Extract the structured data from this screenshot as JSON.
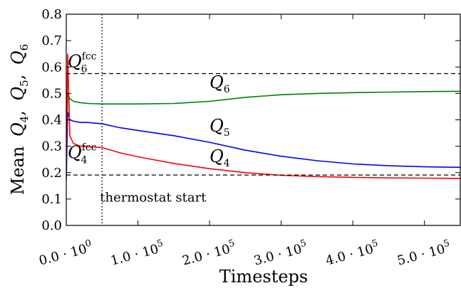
{
  "chart_data": {
    "type": "line",
    "xlabel": "Timesteps",
    "ylabel": "Mean Q4, Q5, Q6",
    "ylabel_parts": {
      "prefix": "Mean",
      "q": "Q",
      "sub4": "4",
      "sub5": "5",
      "sub6": "6",
      "sep": ","
    },
    "xlim": [
      0,
      550000
    ],
    "ylim": [
      0,
      0.8
    ],
    "x_ticks": [
      {
        "value": 0,
        "mantissa": "0.0",
        "dot": "·",
        "base": "10",
        "exp": "0"
      },
      {
        "value": 100000,
        "mantissa": "1.0",
        "dot": "·",
        "base": "10",
        "exp": "5"
      },
      {
        "value": 200000,
        "mantissa": "2.0",
        "dot": "·",
        "base": "10",
        "exp": "5"
      },
      {
        "value": 300000,
        "mantissa": "3.0",
        "dot": "·",
        "base": "10",
        "exp": "5"
      },
      {
        "value": 400000,
        "mantissa": "4.0",
        "dot": "·",
        "base": "10",
        "exp": "5"
      },
      {
        "value": 500000,
        "mantissa": "5.0",
        "dot": "·",
        "base": "10",
        "exp": "5"
      }
    ],
    "y_ticks": [
      "0.0",
      "0.1",
      "0.2",
      "0.3",
      "0.4",
      "0.5",
      "0.6",
      "0.7",
      "0.8"
    ],
    "grid": false,
    "series": [
      {
        "name": "Q6",
        "color": "#008000",
        "x": [
          0,
          2000,
          5000,
          10000,
          20000,
          30000,
          50000,
          100000,
          150000,
          200000,
          250000,
          300000,
          350000,
          400000,
          450000,
          500000,
          550000
        ],
        "y": [
          0.26,
          0.5,
          0.48,
          0.47,
          0.465,
          0.462,
          0.46,
          0.46,
          0.462,
          0.47,
          0.485,
          0.495,
          0.5,
          0.503,
          0.505,
          0.507,
          0.508
        ]
      },
      {
        "name": "Q5",
        "color": "#0000ff",
        "x": [
          0,
          2000,
          5000,
          10000,
          20000,
          30000,
          50000,
          75000,
          100000,
          150000,
          200000,
          250000,
          300000,
          350000,
          400000,
          450000,
          500000,
          550000
        ],
        "y": [
          0.17,
          0.43,
          0.4,
          0.395,
          0.39,
          0.39,
          0.385,
          0.37,
          0.36,
          0.34,
          0.315,
          0.285,
          0.262,
          0.245,
          0.233,
          0.226,
          0.222,
          0.22
        ]
      },
      {
        "name": "Q4",
        "color": "#ff0000",
        "x": [
          0,
          2000,
          5000,
          10000,
          20000,
          30000,
          50000,
          75000,
          100000,
          150000,
          200000,
          250000,
          300000,
          350000,
          400000,
          450000,
          500000,
          550000
        ],
        "y": [
          0.24,
          0.65,
          0.34,
          0.31,
          0.3,
          0.298,
          0.295,
          0.275,
          0.26,
          0.235,
          0.215,
          0.2,
          0.19,
          0.185,
          0.182,
          0.18,
          0.179,
          0.178
        ]
      }
    ],
    "reference_lines": [
      {
        "y": 0.575,
        "style": "dashed",
        "color": "#000000",
        "label": "Q6fcc",
        "base": "Q",
        "sub": "6",
        "sup": "fcc"
      },
      {
        "y": 0.191,
        "style": "dashed",
        "color": "#000000",
        "label": "Q4fcc",
        "base": "Q",
        "sub": "4",
        "sup": "fcc"
      }
    ],
    "vertical_line": {
      "x": 50000,
      "style": "dotted",
      "color": "#000000",
      "label": "thermostat start"
    },
    "series_labels": [
      {
        "text": "Q6",
        "base": "Q",
        "sub": "6",
        "x": 200000,
        "y": 0.52
      },
      {
        "text": "Q5",
        "base": "Q",
        "sub": "5",
        "x": 200000,
        "y": 0.355
      },
      {
        "text": "Q4",
        "base": "Q",
        "sub": "4",
        "x": 200000,
        "y": 0.24
      }
    ]
  }
}
